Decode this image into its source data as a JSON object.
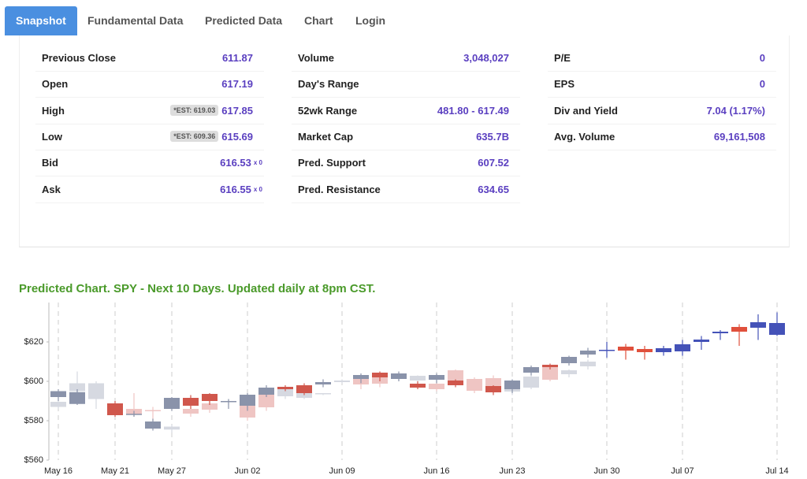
{
  "tabs": [
    "Snapshot",
    "Fundamental Data",
    "Predicted Data",
    "Chart",
    "Login"
  ],
  "stats": {
    "columns": [
      [
        {
          "label": "Previous Close",
          "value": "611.87"
        },
        {
          "label": "Open",
          "value": "617.19"
        },
        {
          "label": "High",
          "value": "617.85",
          "badge": "*EST: 619.03"
        },
        {
          "label": "Low",
          "value": "615.69",
          "badge": "*EST: 609.36"
        },
        {
          "label": "Bid",
          "value": "616.53",
          "suffix": "x 0"
        },
        {
          "label": "Ask",
          "value": "616.55",
          "suffix": "x 0"
        }
      ],
      [
        {
          "label": "Volume",
          "value": "3,048,027"
        },
        {
          "label": "Day's Range"
        },
        {
          "label": "52wk Range",
          "value": "481.80 - 617.49"
        },
        {
          "label": "Market Cap",
          "value": "635.7B"
        },
        {
          "label": "Pred. Support",
          "value": "607.52"
        },
        {
          "label": "Pred. Resistance",
          "value": "634.65"
        }
      ],
      [
        {
          "label": "P/E",
          "value": "0"
        },
        {
          "label": "EPS",
          "value": "0"
        },
        {
          "label": "Div and Yield",
          "value": "7.04 (1.17%)"
        },
        {
          "label": "Avg. Volume",
          "value": "69,161,508"
        }
      ]
    ]
  },
  "chart_data": {
    "type": "candlestick",
    "title": "Predicted Chart. SPY - Next 10 Days. Updated daily at 8pm CST.",
    "categories": [
      "May 16",
      null,
      null,
      "May 21",
      null,
      null,
      "May 27",
      null,
      null,
      null,
      "Jun 02",
      null,
      null,
      null,
      null,
      "Jun 09",
      null,
      null,
      null,
      null,
      "Jun 16",
      null,
      null,
      null,
      "Jun 23",
      null,
      null,
      null,
      null,
      "Jun 30",
      null,
      null,
      null,
      "Jul 07",
      null,
      null,
      null,
      null,
      "Jul 14"
    ],
    "ylim": [
      560,
      640
    ],
    "yticks": [
      {
        "value": 560,
        "label": "$560"
      },
      {
        "value": 580,
        "label": "$580"
      },
      {
        "value": 600,
        "label": "$600"
      },
      {
        "value": 620,
        "label": "$620"
      }
    ],
    "series": [
      {
        "up_color": "#d6d9e1",
        "down_color": "#efc5c3",
        "open": [
          587,
          595,
          591,
          null,
          586,
          585.4,
          575.5,
          586,
          588.8,
          589.6,
          587.6,
          593.2,
          592.4,
          591.6,
          593.6,
          599.6,
          601.2,
          602.4,
          601.6,
          600.4,
          598.8,
          605.6,
          601.2,
          601.6,
          594.8,
          596.8,
          607.2,
          603.6,
          607.6,
          null,
          null,
          null,
          null,
          null,
          null,
          null,
          null,
          null,
          null
        ],
        "close": [
          589.6,
          599,
          599,
          null,
          583,
          585,
          577,
          583.6,
          585.6,
          590,
          581.6,
          586.8,
          596,
          594.8,
          594,
          600.4,
          598.4,
          598.8,
          603.6,
          602.8,
          596,
          600.4,
          595.2,
          595.6,
          597.2,
          602.4,
          600.8,
          605.6,
          610,
          null,
          null,
          null,
          null,
          null,
          null,
          null,
          null,
          null,
          null
        ],
        "high": [
          590,
          605,
          600,
          null,
          594,
          587,
          578,
          588,
          590,
          591,
          588,
          594,
          597,
          596,
          594,
          601,
          602,
          604,
          604,
          603,
          600,
          606,
          602,
          603,
          598,
          604,
          608,
          606,
          611,
          null,
          null,
          null,
          null,
          null,
          null,
          null,
          null,
          null,
          null
        ],
        "low": [
          586,
          592,
          586,
          null,
          582,
          580,
          574,
          582,
          584,
          588,
          580,
          585,
          591,
          591,
          593,
          599,
          596,
          597,
          600,
          599,
          595,
          598,
          594,
          594,
          593,
          596,
          600,
          602,
          606,
          null,
          null,
          null,
          null,
          null,
          null,
          null,
          null,
          null,
          null
        ]
      },
      {
        "up_color": "#8a93aa",
        "down_color": "#d0574c",
        "open": [
          592,
          588.5,
          null,
          588.8,
          583,
          576,
          586,
          591.6,
          593.6,
          589.6,
          587.6,
          593.2,
          597.2,
          598,
          598.4,
          null,
          601.2,
          604.4,
          601.2,
          598.8,
          600.8,
          600.4,
          null,
          597.6,
          596,
          604.4,
          608.4,
          609.2,
          613.6,
          null,
          null,
          null,
          null,
          null,
          null,
          null,
          null,
          null,
          null
        ],
        "close": [
          595,
          594.5,
          null,
          582.8,
          583.5,
          579.6,
          591.6,
          587.6,
          590,
          590,
          593.2,
          596.8,
          596,
          594,
          599.6,
          null,
          603.2,
          602,
          604,
          596.8,
          603.2,
          598,
          null,
          594.4,
          600.4,
          607.2,
          607.2,
          612.4,
          615.6,
          null,
          null,
          null,
          null,
          null,
          null,
          null,
          null,
          null,
          null
        ],
        "high": [
          596,
          596,
          null,
          590,
          585,
          581,
          592,
          593,
          594,
          591,
          594,
          598,
          598,
          599,
          601,
          null,
          604,
          605,
          605,
          600,
          604,
          601,
          null,
          598,
          601,
          608,
          609,
          613,
          617,
          null,
          null,
          null,
          null,
          null,
          null,
          null,
          null,
          null,
          null
        ],
        "low": [
          590,
          588,
          null,
          582,
          582,
          575,
          585,
          586,
          588,
          586,
          585,
          592,
          595,
          593,
          597,
          null,
          599,
          600,
          600,
          596,
          599,
          597,
          null,
          593,
          594,
          603,
          606,
          608,
          612,
          null,
          null,
          null,
          null,
          null,
          null,
          null,
          null,
          null,
          null
        ]
      },
      {
        "up_color": "#4452b8",
        "down_color": "#e0503c",
        "open": [
          null,
          null,
          null,
          null,
          null,
          null,
          null,
          null,
          null,
          null,
          null,
          null,
          null,
          null,
          null,
          null,
          null,
          null,
          null,
          null,
          null,
          null,
          null,
          null,
          null,
          null,
          null,
          null,
          null,
          615.6,
          617.6,
          616.4,
          614.8,
          615.2,
          620,
          624.4,
          627.6,
          627.2,
          623.6
        ],
        "close": [
          null,
          null,
          null,
          null,
          null,
          null,
          null,
          null,
          null,
          null,
          null,
          null,
          null,
          null,
          null,
          null,
          null,
          null,
          null,
          null,
          null,
          null,
          null,
          null,
          null,
          null,
          null,
          null,
          null,
          616,
          615.6,
          614.8,
          616.8,
          618.8,
          621.2,
          625.2,
          625.2,
          630,
          629.6
        ],
        "high": [
          null,
          null,
          null,
          null,
          null,
          null,
          null,
          null,
          null,
          null,
          null,
          null,
          null,
          null,
          null,
          null,
          null,
          null,
          null,
          null,
          null,
          null,
          null,
          null,
          null,
          null,
          null,
          null,
          null,
          620,
          619,
          618,
          618,
          621,
          623,
          626,
          629,
          634,
          635
        ],
        "low": [
          null,
          null,
          null,
          null,
          null,
          null,
          null,
          null,
          null,
          null,
          null,
          null,
          null,
          null,
          null,
          null,
          null,
          null,
          null,
          null,
          null,
          null,
          null,
          null,
          null,
          null,
          null,
          null,
          null,
          612,
          611,
          611,
          613,
          613,
          616,
          621,
          618,
          621,
          623
        ]
      }
    ]
  }
}
